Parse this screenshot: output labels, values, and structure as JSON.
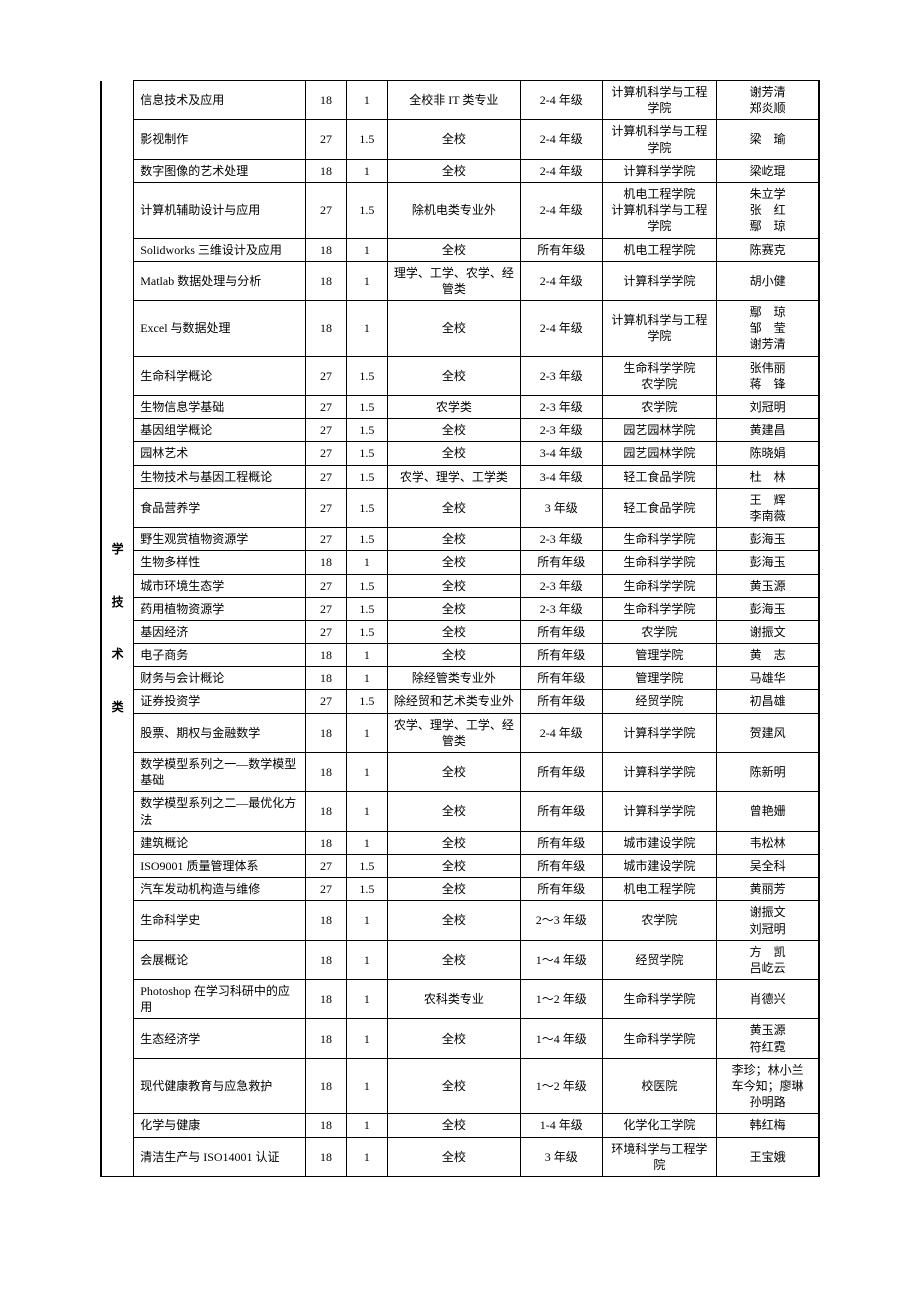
{
  "category_label": "学 技 术 类",
  "rows": [
    {
      "course": "信息技术及应用",
      "hours": "18",
      "credit": "1",
      "scope": "全校非 IT 类专业",
      "grade": "2-4 年级",
      "dept": "计算机科学与工程学院",
      "instructors": "谢芳清\n郑炎顺"
    },
    {
      "course": "影视制作",
      "hours": "27",
      "credit": "1.5",
      "scope": "全校",
      "grade": "2-4 年级",
      "dept": "计算机科学与工程学院",
      "instructors": "梁　瑜"
    },
    {
      "course": "数字图像的艺术处理",
      "hours": "18",
      "credit": "1",
      "scope": "全校",
      "grade": "2-4 年级",
      "dept": "计算科学学院",
      "instructors": "梁屹琨"
    },
    {
      "course": "计算机辅助设计与应用",
      "hours": "27",
      "credit": "1.5",
      "scope": "除机电类专业外",
      "grade": "2-4 年级",
      "dept": "机电工程学院\n计算机科学与工程学院",
      "instructors": "朱立学\n张　红\n鄢　琼"
    },
    {
      "course": "Solidworks 三维设计及应用",
      "hours": "18",
      "credit": "1",
      "scope": "全校",
      "grade": "所有年级",
      "dept": "机电工程学院",
      "instructors": "陈赛克"
    },
    {
      "course": "Matlab 数据处理与分析",
      "hours": "18",
      "credit": "1",
      "scope": "理学、工学、农学、经管类",
      "grade": "2-4 年级",
      "dept": "计算科学学院",
      "instructors": "胡小健"
    },
    {
      "course": "Excel 与数据处理",
      "hours": "18",
      "credit": "1",
      "scope": "全校",
      "grade": "2-4 年级",
      "dept": "计算机科学与工程学院",
      "instructors": "鄢　琼\n邹　莹\n谢芳清"
    },
    {
      "course": "生命科学概论",
      "hours": "27",
      "credit": "1.5",
      "scope": "全校",
      "grade": "2-3 年级",
      "dept": "生命科学学院\n农学院",
      "instructors": "张伟丽\n蒋　锋"
    },
    {
      "course": "生物信息学基础",
      "hours": "27",
      "credit": "1.5",
      "scope": "农学类",
      "grade": "2-3 年级",
      "dept": "农学院",
      "instructors": "刘冠明"
    },
    {
      "course": "基因组学概论",
      "hours": "27",
      "credit": "1.5",
      "scope": "全校",
      "grade": "2-3 年级",
      "dept": "园艺园林学院",
      "instructors": "黄建昌"
    },
    {
      "course": "园林艺术",
      "hours": "27",
      "credit": "1.5",
      "scope": "全校",
      "grade": "3-4 年级",
      "dept": "园艺园林学院",
      "instructors": "陈晓娟"
    },
    {
      "course": "生物技术与基因工程概论",
      "hours": "27",
      "credit": "1.5",
      "scope": "农学、理学、工学类",
      "grade": "3-4 年级",
      "dept": "轻工食品学院",
      "instructors": "杜　林"
    },
    {
      "course": "食品营养学",
      "hours": "27",
      "credit": "1.5",
      "scope": "全校",
      "grade": "3 年级",
      "dept": "轻工食品学院",
      "instructors": "王　辉\n李南薇"
    },
    {
      "course": "野生观赏植物资源学",
      "hours": "27",
      "credit": "1.5",
      "scope": "全校",
      "grade": "2-3 年级",
      "dept": "生命科学学院",
      "instructors": "彭海玉"
    },
    {
      "course": "生物多样性",
      "hours": "18",
      "credit": "1",
      "scope": "全校",
      "grade": "所有年级",
      "dept": "生命科学学院",
      "instructors": "彭海玉"
    },
    {
      "course": "城市环境生态学",
      "hours": "27",
      "credit": "1.5",
      "scope": "全校",
      "grade": "2-3 年级",
      "dept": "生命科学学院",
      "instructors": "黄玉源"
    },
    {
      "course": "药用植物资源学",
      "hours": "27",
      "credit": "1.5",
      "scope": "全校",
      "grade": "2-3 年级",
      "dept": "生命科学学院",
      "instructors": "彭海玉"
    },
    {
      "course": "基因经济",
      "hours": "27",
      "credit": "1.5",
      "scope": "全校",
      "grade": "所有年级",
      "dept": "农学院",
      "instructors": "谢振文"
    },
    {
      "course": "电子商务",
      "hours": "18",
      "credit": "1",
      "scope": "全校",
      "grade": "所有年级",
      "dept": "管理学院",
      "instructors": "黄　志"
    },
    {
      "course": "财务与会计概论",
      "hours": "18",
      "credit": "1",
      "scope": "除经管类专业外",
      "grade": "所有年级",
      "dept": "管理学院",
      "instructors": "马雄华"
    },
    {
      "course": "证券投资学",
      "hours": "27",
      "credit": "1.5",
      "scope": "除经贸和艺术类专业外",
      "grade": "所有年级",
      "dept": "经贸学院",
      "instructors": "初昌雄"
    },
    {
      "course": "股票、期权与金融数学",
      "hours": "18",
      "credit": "1",
      "scope": "农学、理学、工学、经管类",
      "grade": "2-4 年级",
      "dept": "计算科学学院",
      "instructors": "贺建风"
    },
    {
      "course": "数学模型系列之一—数学模型基础",
      "hours": "18",
      "credit": "1",
      "scope": "全校",
      "grade": "所有年级",
      "dept": "计算科学学院",
      "instructors": "陈新明"
    },
    {
      "course": "数学模型系列之二—最优化方法",
      "hours": "18",
      "credit": "1",
      "scope": "全校",
      "grade": "所有年级",
      "dept": "计算科学学院",
      "instructors": "曾艳姗"
    },
    {
      "course": "建筑概论",
      "hours": "18",
      "credit": "1",
      "scope": "全校",
      "grade": "所有年级",
      "dept": "城市建设学院",
      "instructors": "韦松林"
    },
    {
      "course": "ISO9001 质量管理体系",
      "hours": "27",
      "credit": "1.5",
      "scope": "全校",
      "grade": "所有年级",
      "dept": "城市建设学院",
      "instructors": "吴全科"
    },
    {
      "course": "汽车发动机构造与维修",
      "hours": "27",
      "credit": "1.5",
      "scope": "全校",
      "grade": "所有年级",
      "dept": "机电工程学院",
      "instructors": "黄丽芳"
    },
    {
      "course": "生命科学史",
      "hours": "18",
      "credit": "1",
      "scope": "全校",
      "grade": "2～3 年级",
      "dept": "农学院",
      "instructors": "谢振文\n刘冠明"
    },
    {
      "course": "会展概论",
      "hours": "18",
      "credit": "1",
      "scope": "全校",
      "grade": "1～4 年级",
      "dept": "经贸学院",
      "instructors": "方　凯\n吕屹云"
    },
    {
      "course": "Photoshop 在学习科研中的应用",
      "hours": "18",
      "credit": "1",
      "scope": "农科类专业",
      "grade": "1～2 年级",
      "dept": "生命科学学院",
      "instructors": "肖德兴"
    },
    {
      "course": "生态经济学",
      "hours": "18",
      "credit": "1",
      "scope": "全校",
      "grade": "1～4 年级",
      "dept": "生命科学学院",
      "instructors": "黄玉源\n符红霓"
    },
    {
      "course": "现代健康教育与应急救护",
      "hours": "18",
      "credit": "1",
      "scope": "全校",
      "grade": "1～2 年级",
      "dept": "校医院",
      "instructors": "李珍；林小兰\n车今知；廖琳\n孙明路"
    },
    {
      "course": "化学与健康",
      "hours": "18",
      "credit": "1",
      "scope": "全校",
      "grade": "1-4 年级",
      "dept": "化学化工学院",
      "instructors": "韩红梅"
    },
    {
      "course": "清洁生产与 ISO14001 认证",
      "hours": "18",
      "credit": "1",
      "scope": "全校",
      "grade": "3 年级",
      "dept": "环境科学与工程学院",
      "instructors": "王宝娥"
    }
  ]
}
